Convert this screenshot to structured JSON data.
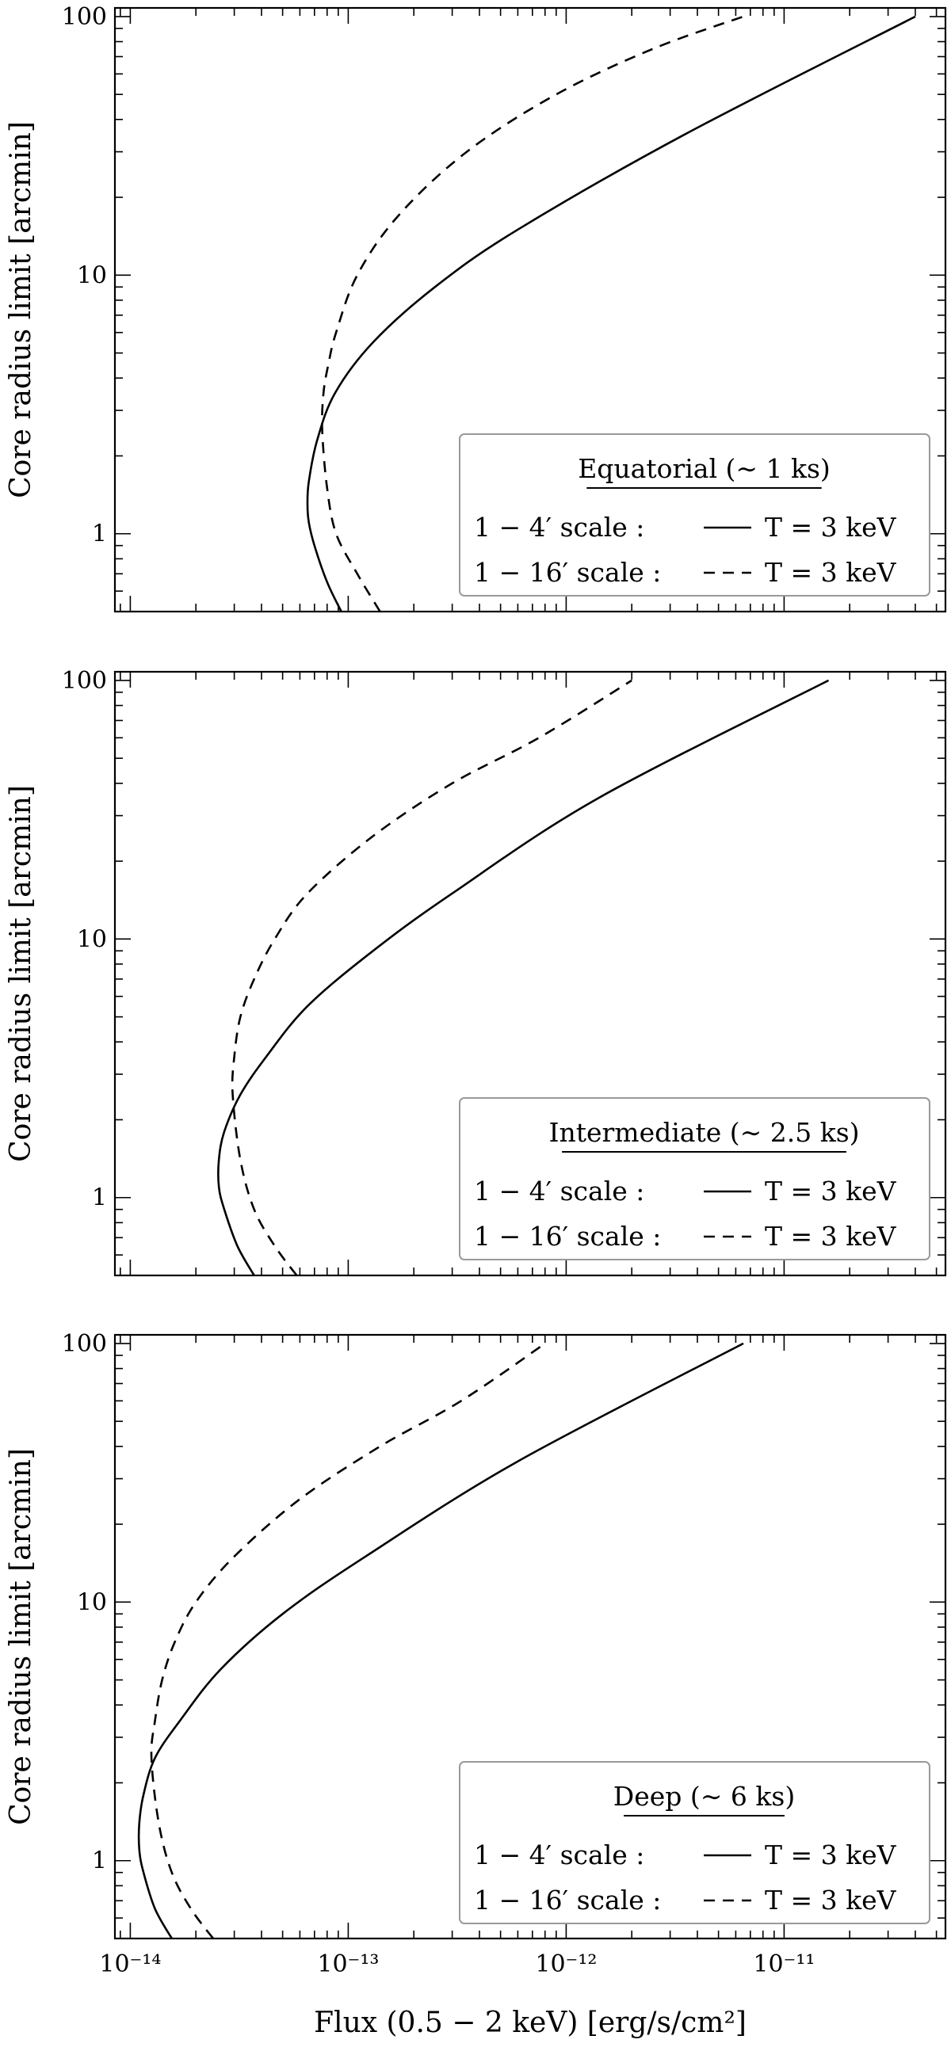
{
  "figure": {
    "ylabel": "Core radius limit [arcmin]",
    "xlabel": "Flux  (0.5 − 2 keV)  [erg/s/cm²]",
    "x_ticks": [
      "10⁻¹⁴",
      "10⁻¹³",
      "10⁻¹²",
      "10⁻¹¹"
    ],
    "y_ticks": [
      "1",
      "10",
      "100"
    ]
  },
  "legend_rows": {
    "row1_scale": "1 − 4′   scale :",
    "row2_scale": "1 − 16′ scale :",
    "temperature": "T = 3 keV"
  },
  "chart_data": [
    {
      "type": "line",
      "title": "Equatorial (∼ 1 ks)",
      "xscale": "log",
      "yscale": "log",
      "xlim": [
        8.5e-15,
        5.5e-11
      ],
      "ylim": [
        0.5,
        108
      ],
      "legend_position": "bottom-right",
      "series": [
        {
          "name": "1 − 4′ scale : T = 3 keV",
          "style": "solid",
          "x": [
            9.3e-14,
            8e-14,
            7e-14,
            6.6e-14,
            6.5e-14,
            6.6e-14,
            7.2e-14,
            8.7e-14,
            1.3e-13,
            2.5e-13,
            6e-13,
            3.5e-12,
            4e-11
          ],
          "y": [
            0.5,
            0.65,
            0.9,
            1.1,
            1.3,
            1.6,
            2.3,
            3.5,
            5.5,
            9,
            15,
            35,
            100
          ]
        },
        {
          "name": "1 − 16′ scale : T = 3 keV",
          "style": "dashed",
          "x": [
            1.4e-13,
            1.1e-13,
            8.8e-14,
            8e-14,
            7.6e-14,
            7.7e-14,
            8.1e-14,
            8.8e-14,
            1.1e-13,
            1.7e-13,
            3.5e-13,
            9e-13,
            2.5e-12,
            6.5e-12
          ],
          "y": [
            0.5,
            0.7,
            1.0,
            1.5,
            2.5,
            3.5,
            4.5,
            6,
            10,
            17,
            30,
            50,
            75,
            100
          ]
        }
      ]
    },
    {
      "type": "line",
      "title": "Intermediate (∼ 2.5 ks)",
      "xscale": "log",
      "yscale": "log",
      "xlim": [
        8.5e-15,
        5.5e-11
      ],
      "ylim": [
        0.5,
        108
      ],
      "legend_position": "bottom-right",
      "series": [
        {
          "name": "1 − 4′ scale : T = 3 keV",
          "style": "solid",
          "x": [
            3.7e-14,
            3.1e-14,
            2.7e-14,
            2.55e-14,
            2.55e-14,
            2.7e-14,
            3.2e-14,
            4.2e-14,
            6.5e-14,
            1.3e-13,
            3e-13,
            1.4e-12,
            1.6e-11
          ],
          "y": [
            0.5,
            0.65,
            0.9,
            1.1,
            1.4,
            1.8,
            2.5,
            3.5,
            5.5,
            9,
            15,
            35,
            100
          ]
        },
        {
          "name": "1 − 16′ scale : T = 3 keV",
          "style": "dashed",
          "x": [
            5.8e-14,
            4.6e-14,
            3.7e-14,
            3.2e-14,
            2.95e-14,
            3e-14,
            3.2e-14,
            3.7e-14,
            4.6e-14,
            6.5e-14,
            1.3e-13,
            3e-13,
            7.5e-13,
            2e-12
          ],
          "y": [
            0.5,
            0.65,
            0.9,
            1.4,
            2.5,
            3.5,
            5,
            7,
            10,
            15,
            25,
            40,
            60,
            100
          ]
        }
      ]
    },
    {
      "type": "line",
      "title": "Deep (∼ 6 ks)",
      "xscale": "log",
      "yscale": "log",
      "xlim": [
        8.5e-15,
        5.5e-11
      ],
      "ylim": [
        0.5,
        108
      ],
      "legend_position": "bottom-right",
      "series": [
        {
          "name": "1 − 4′ scale : T = 3 keV",
          "style": "solid",
          "x": [
            1.55e-14,
            1.3e-14,
            1.15e-14,
            1.1e-14,
            1.1e-14,
            1.15e-14,
            1.3e-14,
            1.7e-14,
            2.6e-14,
            5e-14,
            1.2e-13,
            6e-13,
            6.5e-12
          ],
          "y": [
            0.5,
            0.65,
            0.9,
            1.1,
            1.4,
            1.8,
            2.5,
            3.5,
            5.5,
            9,
            15,
            35,
            100
          ]
        },
        {
          "name": "1 − 16′ scale : T = 3 keV",
          "style": "dashed",
          "x": [
            2.4e-14,
            1.9e-14,
            1.55e-14,
            1.35e-14,
            1.25e-14,
            1.3e-14,
            1.4e-14,
            1.6e-14,
            2e-14,
            3e-14,
            6e-14,
            1.4e-13,
            3.3e-13,
            8e-13
          ],
          "y": [
            0.5,
            0.65,
            0.9,
            1.4,
            2.5,
            3.5,
            5,
            7,
            10,
            15,
            25,
            40,
            60,
            100
          ]
        }
      ]
    }
  ]
}
